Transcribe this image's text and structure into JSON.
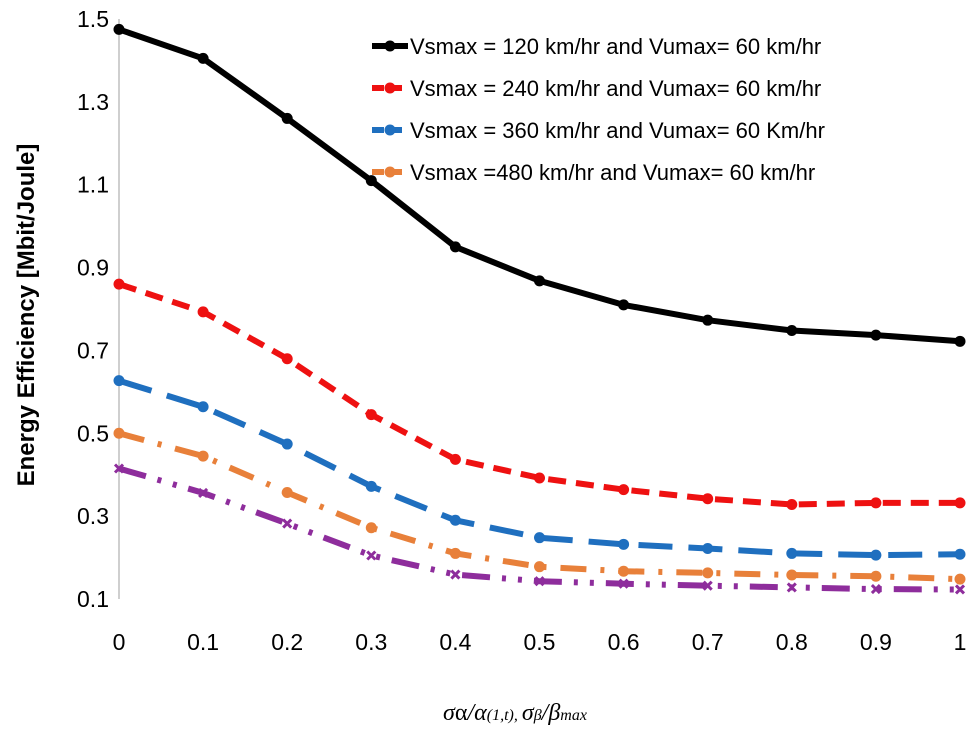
{
  "chart_data": {
    "type": "line",
    "title": "",
    "xlabel": "σα/α(1,t), σβ/βmax",
    "xlabel_parts": {
      "a": "σ",
      "b": "α",
      "c": "/",
      "d": "α",
      "e": "(1,",
      "f": "t",
      "g": "), ",
      "h": "σ",
      "i": "β",
      "j": "/",
      "k": "β",
      "l": "max"
    },
    "ylabel": "Energy Efficiency [Mbit/Joule]",
    "x": [
      0,
      0.1,
      0.2,
      0.3,
      0.4,
      0.5,
      0.6,
      0.7,
      0.8,
      0.9,
      1
    ],
    "x_tick_labels": [
      "0",
      "0.1",
      "0.2",
      "0.3",
      "0.4",
      "0.5",
      "0.6",
      "0.7",
      "0.8",
      "0.9",
      "1"
    ],
    "y_tick_labels": [
      "0.1",
      "0.3",
      "0.5",
      "0.7",
      "0.9",
      "1.1",
      "1.3",
      "1.5"
    ],
    "xlim": [
      0,
      1
    ],
    "ylim": [
      0.1,
      1.5
    ],
    "grid": false,
    "legend_position": "top-right",
    "series": [
      {
        "name": "Vsmax = 120 km/hr and Vumax= 60  km/hr",
        "color": "#000000",
        "style": "solid",
        "values": [
          1.475,
          1.405,
          1.26,
          1.11,
          0.95,
          0.868,
          0.81,
          0.773,
          0.748,
          0.737,
          0.722
        ]
      },
      {
        "name": "Vsmax = 240 km/hr and Vumax= 60 km/hr",
        "color": "#ee1111",
        "style": "dash",
        "values": [
          0.86,
          0.793,
          0.68,
          0.545,
          0.437,
          0.392,
          0.364,
          0.342,
          0.328,
          0.332,
          0.332
        ]
      },
      {
        "name": "Vsmax = 360 km/hr and Vumax= 60 Km/hr",
        "color": "#1f6fbf",
        "style": "longdash",
        "values": [
          0.627,
          0.564,
          0.474,
          0.372,
          0.29,
          0.248,
          0.232,
          0.222,
          0.21,
          0.206,
          0.208
        ]
      },
      {
        "name": "Vsmax =480 km/hr and Vumax= 60 km/hr",
        "color": "#e8803a",
        "style": "dashdot",
        "values": [
          0.5,
          0.445,
          0.357,
          0.272,
          0.21,
          0.178,
          0.167,
          0.163,
          0.158,
          0.155,
          0.148
        ]
      },
      {
        "name": "",
        "color": "#8e2d9c",
        "style": "dashdotdot",
        "values": [
          0.415,
          0.356,
          0.282,
          0.205,
          0.159,
          0.143,
          0.137,
          0.132,
          0.128,
          0.124,
          0.123
        ]
      }
    ]
  }
}
